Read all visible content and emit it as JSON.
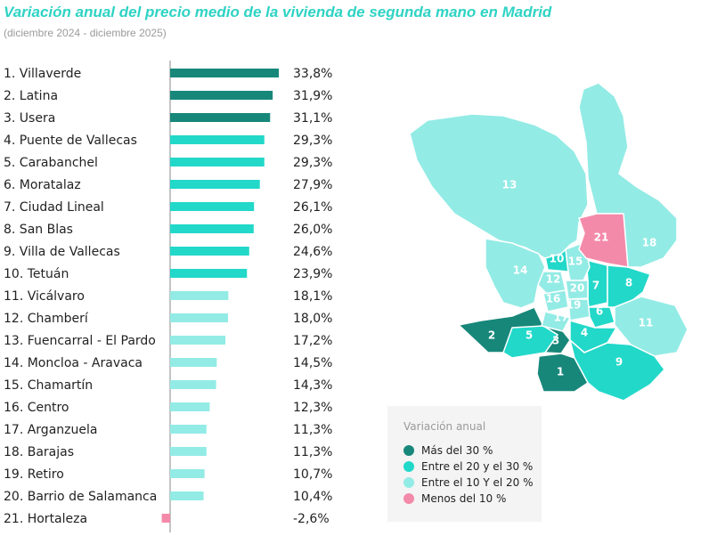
{
  "title": "Variación anual del precio medio de la vivienda de segunda mano en Madrid",
  "subtitle": "(diciembre 2024 - diciembre 2025)",
  "colors": {
    "mas_30": "#17877a",
    "20_30": "#22d8c9",
    "10_20": "#93ebe5",
    "menos_10": "#f48aaa"
  },
  "legend": {
    "title": "Variación anual",
    "items": [
      {
        "label": "Más del 30 %",
        "color": "#17877a"
      },
      {
        "label": "Entre el 20 y el 30 %",
        "color": "#22d8c9"
      },
      {
        "label": "Entre el 10 Y el 20 %",
        "color": "#93ebe5"
      },
      {
        "label": "Menos del 10 %",
        "color": "#f48aaa"
      }
    ]
  },
  "chart_data": {
    "type": "bar",
    "orientation": "horizontal",
    "title": "Variación anual del precio medio de la vivienda de segunda mano en Madrid",
    "subtitle": "(diciembre 2024 - diciembre 2025)",
    "categories": [
      "1. Villaverde",
      "2. Latina",
      "3. Usera",
      "4. Puente de Vallecas",
      "5. Carabanchel",
      "6. Moratalaz",
      "7. Ciudad Lineal",
      "8. San Blas",
      "9. Villa de Vallecas",
      "10. Tetuán",
      "11. Vicálvaro",
      "12. Chamberí",
      "13. Fuencarral - El Pardo",
      "14. Moncloa - Aravaca",
      "15. Chamartín",
      "16. Centro",
      "17. Arganzuela",
      "18. Barajas",
      "19. Retiro",
      "20. Barrio de Salamanca",
      "21. Hortaleza"
    ],
    "values": [
      33.8,
      31.9,
      31.1,
      29.3,
      29.3,
      27.9,
      26.1,
      26.0,
      24.6,
      23.9,
      18.1,
      18.0,
      17.2,
      14.5,
      14.3,
      12.3,
      11.3,
      11.3,
      10.7,
      10.4,
      -2.6
    ],
    "value_labels": [
      "33,8%",
      "31,9%",
      "31,1%",
      "29,3%",
      "29,3%",
      "27,9%",
      "26,1%",
      "26,0%",
      "24,6%",
      "23,9%",
      "18,1%",
      "18,0%",
      "17,2%",
      "14,5%",
      "14,3%",
      "12,3%",
      "11,3%",
      "11,3%",
      "10,7%",
      "10,4%",
      "-2,6%"
    ],
    "grid": false
  },
  "map": {
    "districts": [
      "1",
      "2",
      "3",
      "4",
      "5",
      "6",
      "7",
      "8",
      "9",
      "10",
      "11",
      "12",
      "13",
      "14",
      "15",
      "16",
      "17",
      "18",
      "19",
      "20",
      "21"
    ]
  }
}
